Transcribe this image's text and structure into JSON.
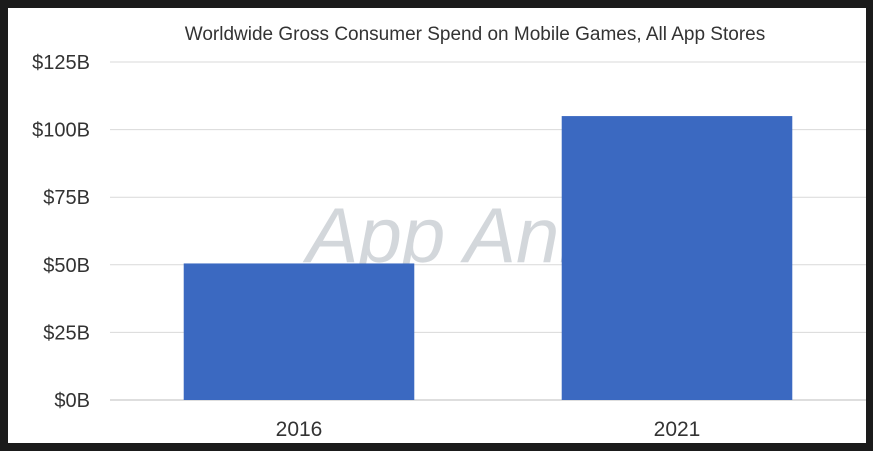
{
  "chart_data": {
    "type": "bar",
    "title": "Worldwide Gross Consumer Spend on Mobile Games, All App Stores",
    "categories": [
      "2016",
      "2021"
    ],
    "values": [
      50.5,
      105
    ],
    "ylim": [
      0,
      125
    ],
    "yticks": [
      0,
      25,
      50,
      75,
      100,
      125
    ],
    "ytick_labels": [
      "$0B",
      "$25B",
      "$50B",
      "$75B",
      "$100B",
      "$125B"
    ],
    "xlabel": "",
    "ylabel": "",
    "grid": true,
    "watermark": "App Annie",
    "colors": {
      "bar": "#3b69c1",
      "grid": "#d9d9d9",
      "text": "#333333",
      "watermark": "#cfd3d8"
    }
  }
}
